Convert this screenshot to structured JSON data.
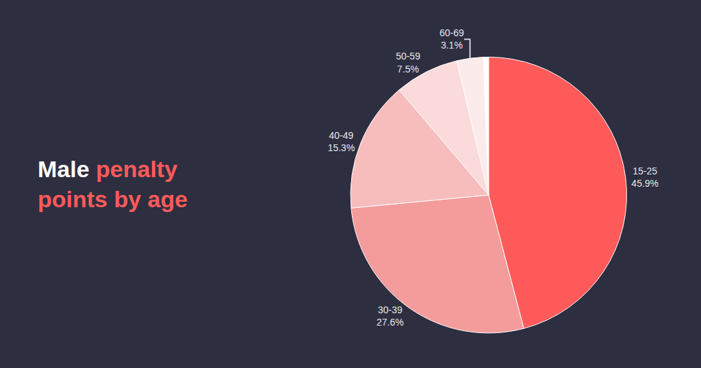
{
  "chart_data": {
    "type": "pie",
    "title": "Male penalty points by age",
    "categories": [
      "15-25",
      "30-39",
      "40-49",
      "50-59",
      "60-69",
      null
    ],
    "values": [
      45.9,
      27.6,
      15.3,
      7.5,
      3.1,
      0.6
    ],
    "value_labels": [
      "45.9%",
      "27.6%",
      "15.3%",
      "7.5%",
      "3.1%",
      null
    ],
    "colors": [
      "#ff5a5a",
      "#f49b9b",
      "#f7bdbd",
      "#fadadb",
      "#fcebeb",
      "#ffffff"
    ],
    "data_labels": true
  }
}
